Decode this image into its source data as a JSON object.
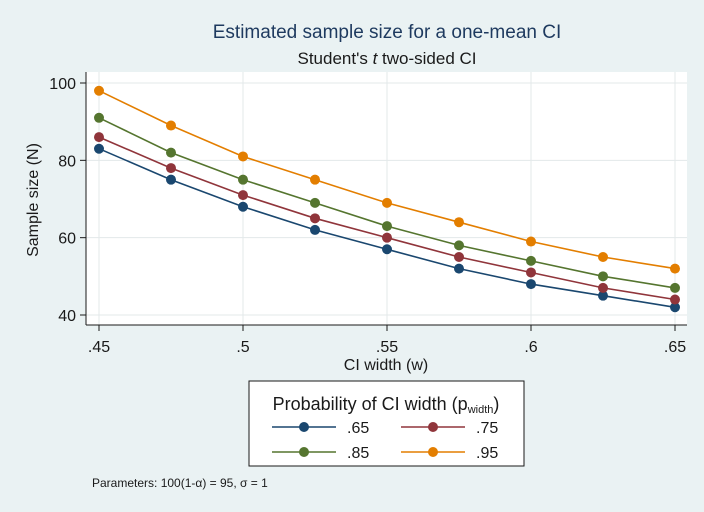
{
  "chart_data": {
    "type": "line",
    "title": "Estimated sample size for a one-mean CI",
    "subtitle_pre": "Student's ",
    "subtitle_italic": "t",
    "subtitle_post": " two-sided CI",
    "xlabel": "CI width (w)",
    "ylabel": "Sample size (N)",
    "x": [
      0.45,
      0.475,
      0.5,
      0.525,
      0.55,
      0.575,
      0.6,
      0.625,
      0.65
    ],
    "xlim": [
      0.45,
      0.65
    ],
    "ylim": [
      40,
      100
    ],
    "xticks": [
      0.45,
      0.5,
      0.55,
      0.6,
      0.65
    ],
    "xtick_labels": [
      ".45",
      ".5",
      ".55",
      ".6",
      ".65"
    ],
    "yticks": [
      40,
      60,
      80,
      100
    ],
    "ytick_labels": [
      "40",
      "60",
      "80",
      "100"
    ],
    "grid": true,
    "legend": {
      "title_main": "Probability of CI width (p",
      "title_sub": "width",
      "title_end": ")",
      "placement": "bottom",
      "columns": 2
    },
    "series": [
      {
        "name": ".65",
        "color": "#1a476f",
        "values": [
          83,
          75,
          68,
          62,
          57,
          52,
          48,
          45,
          42
        ]
      },
      {
        "name": ".75",
        "color": "#90353b",
        "values": [
          86,
          78,
          71,
          65,
          60,
          55,
          51,
          47,
          44
        ]
      },
      {
        "name": ".85",
        "color": "#55752f",
        "values": [
          91,
          82,
          75,
          69,
          63,
          58,
          54,
          50,
          47
        ]
      },
      {
        "name": ".95",
        "color": "#e37e00",
        "values": [
          98,
          89,
          81,
          75,
          69,
          64,
          59,
          55,
          52
        ]
      }
    ],
    "note": "Parameters: 100(1-α) = 95, σ = 1"
  }
}
